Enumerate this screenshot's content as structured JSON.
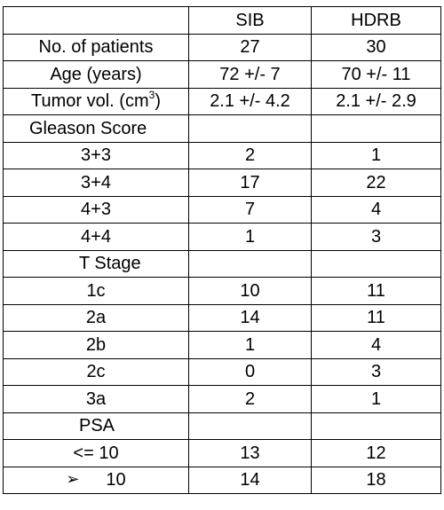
{
  "header": {
    "col1": "",
    "col2": "SIB",
    "col3": "HDRB"
  },
  "rows": {
    "patients": {
      "label": "No. of patients",
      "sib": "27",
      "hdrb": "30"
    },
    "age": {
      "label": "Age (years)",
      "sib": "72 +/- 7",
      "hdrb": "70 +/- 11"
    },
    "tumor": {
      "label_pre": "Tumor vol. (cm",
      "label_sup": "3",
      "label_post": ")",
      "sib": "2.1 +/- 4.2",
      "hdrb": "2.1 +/- 2.9"
    },
    "gleason_header": {
      "label": "Gleason Score"
    },
    "g33": {
      "label": "3+3",
      "sib": "2",
      "hdrb": "1"
    },
    "g34": {
      "label": "3+4",
      "sib": "17",
      "hdrb": "22"
    },
    "g43": {
      "label": "4+3",
      "sib": "7",
      "hdrb": "4"
    },
    "g44": {
      "label": "4+4",
      "sib": "1",
      "hdrb": "3"
    },
    "tstage_header": {
      "label": "T Stage"
    },
    "t1c": {
      "label": "1c",
      "sib": "10",
      "hdrb": "11"
    },
    "t2a": {
      "label": "2a",
      "sib": "14",
      "hdrb": "11"
    },
    "t2b": {
      "label": "2b",
      "sib": "1",
      "hdrb": "4"
    },
    "t2c": {
      "label": "2c",
      "sib": "0",
      "hdrb": "3"
    },
    "t3a": {
      "label": "3a",
      "sib": "2",
      "hdrb": "1"
    },
    "psa_header": {
      "label": "PSA"
    },
    "psa_le10": {
      "label": "<= 10",
      "sib": "13",
      "hdrb": "12"
    },
    "psa_gt10": {
      "icon": "arrowhead-bullet-icon",
      "icon_glyph": "➢",
      "label": "10",
      "sib": "14",
      "hdrb": "18"
    }
  }
}
